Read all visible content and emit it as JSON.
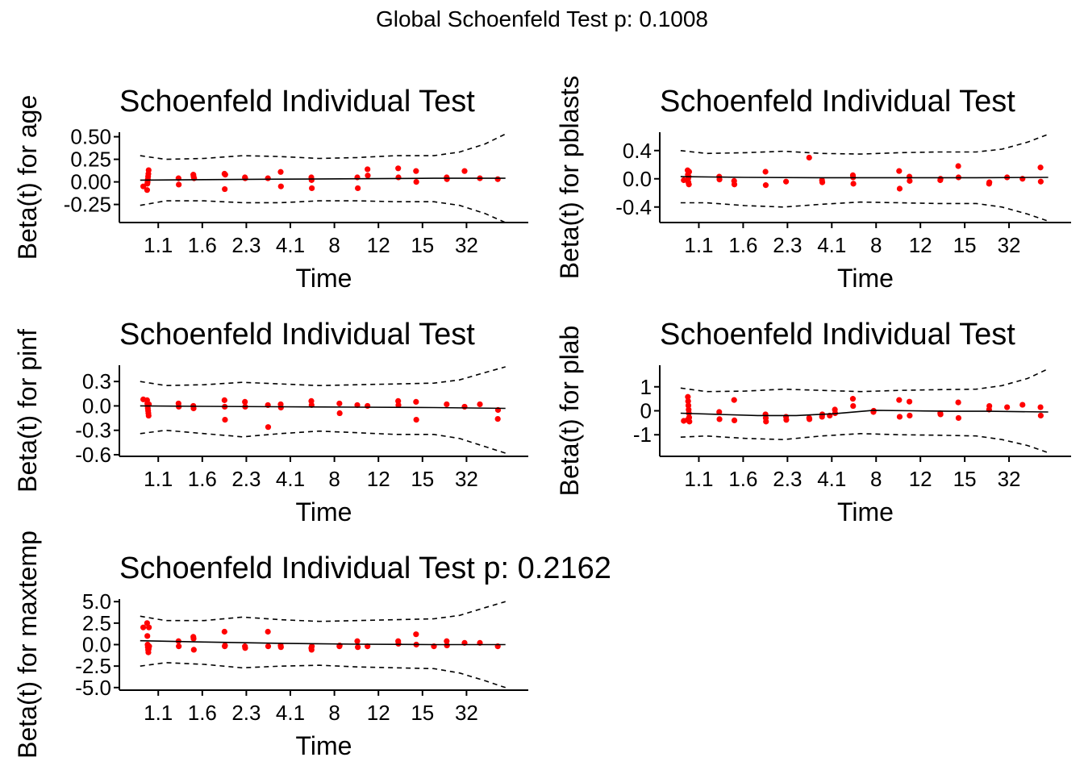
{
  "figure": {
    "title": "Global Schoenfeld Test p: 0.1008",
    "colors": {
      "points": "#ff0000",
      "lines": "#000000",
      "background": "#ffffff"
    }
  },
  "chart_data": [
    {
      "type": "scatter",
      "title": "Schoenfeld Individual Test",
      "xlabel": "Time",
      "ylabel": "Beta(t) for age",
      "x_ticks": [
        "1.1",
        "1.6",
        "2.3",
        "4.1",
        "8",
        "12",
        "15",
        "32"
      ],
      "y_ticks": [
        0.5,
        0.25,
        0.0,
        -0.25
      ],
      "y_tick_labels": [
        "0.50",
        "0.25",
        "0.00",
        "-0.25"
      ],
      "ylim": [
        -0.45,
        0.55
      ],
      "grid": false,
      "series": [
        {
          "kind": "points",
          "x": [
            0.62,
            0.77,
            0.78,
            0.79,
            0.8,
            0.81,
            0.82,
            0.83,
            2.0,
            2.01,
            2.58,
            2.59,
            2.61,
            3.8,
            3.81,
            3.83,
            4.6,
            4.61,
            5.5,
            6.0,
            6.01,
            7.2,
            7.21,
            7.22,
            9.0,
            9.02,
            9.4,
            9.41,
            10.6,
            10.61,
            11.3,
            11.31,
            12.5,
            12.51,
            13.2,
            13.8,
            14.5
          ],
          "y": [
            -0.05,
            -0.09,
            -0.02,
            0.0,
            0.03,
            0.06,
            0.09,
            0.13,
            0.04,
            -0.03,
            0.08,
            0.06,
            0.04,
            0.09,
            -0.08,
            0.08,
            0.05,
            0.04,
            0.04,
            0.11,
            -0.05,
            0.05,
            0.02,
            -0.07,
            0.05,
            -0.07,
            0.14,
            0.07,
            0.15,
            0.05,
            0.12,
            0.0,
            0.05,
            0.03,
            0.12,
            0.04,
            0.03
          ]
        },
        {
          "kind": "fit",
          "x": [
            0.5,
            3.0,
            6.0,
            9.0,
            12.0,
            14.8
          ],
          "y": [
            0.02,
            0.025,
            0.03,
            0.035,
            0.04,
            0.04
          ]
        },
        {
          "kind": "upper_band",
          "x": [
            0.5,
            1.5,
            3.0,
            4.5,
            6.0,
            7.5,
            9.0,
            10.5,
            12.0,
            13.0,
            14.0,
            14.8
          ],
          "y": [
            0.29,
            0.25,
            0.26,
            0.29,
            0.28,
            0.26,
            0.27,
            0.29,
            0.29,
            0.33,
            0.42,
            0.53
          ]
        },
        {
          "kind": "lower_band",
          "x": [
            0.5,
            1.5,
            3.0,
            4.5,
            6.0,
            7.5,
            9.0,
            10.5,
            12.0,
            13.0,
            14.0,
            14.8
          ],
          "y": [
            -0.26,
            -0.21,
            -0.21,
            -0.23,
            -0.23,
            -0.21,
            -0.21,
            -0.22,
            -0.22,
            -0.26,
            -0.35,
            -0.45
          ]
        }
      ]
    },
    {
      "type": "scatter",
      "title": "Schoenfeld Individual Test",
      "xlabel": "Time",
      "ylabel": "Beta(t) for pblasts",
      "x_ticks": [
        "1.1",
        "1.6",
        "2.3",
        "4.1",
        "8",
        "12",
        "15",
        "32"
      ],
      "y_ticks": [
        0.4,
        0.0,
        -0.4
      ],
      "y_tick_labels": [
        "0.4",
        "0.0",
        "-0.4"
      ],
      "ylim": [
        -0.62,
        0.66
      ],
      "grid": false,
      "series": [
        {
          "kind": "points",
          "x": [
            0.62,
            0.77,
            0.78,
            0.79,
            0.8,
            0.81,
            0.82,
            0.83,
            2.0,
            2.01,
            2.58,
            2.59,
            3.8,
            3.81,
            4.6,
            5.5,
            6.0,
            6.01,
            7.2,
            7.21,
            7.22,
            9.0,
            9.02,
            9.4,
            9.41,
            10.6,
            10.61,
            11.3,
            11.31,
            12.5,
            12.51,
            13.2,
            13.8,
            14.5,
            14.51
          ],
          "y": [
            -0.02,
            0.12,
            0.06,
            0.0,
            -0.05,
            0.03,
            -0.08,
            0.1,
            0.03,
            -0.01,
            -0.03,
            -0.08,
            0.1,
            -0.09,
            -0.04,
            0.3,
            -0.02,
            -0.05,
            0.05,
            0.02,
            -0.07,
            0.11,
            -0.14,
            0.03,
            -0.03,
            -0.02,
            0.0,
            0.18,
            0.02,
            -0.07,
            -0.05,
            0.02,
            0.0,
            0.16,
            -0.04
          ]
        },
        {
          "kind": "fit",
          "x": [
            0.5,
            3.0,
            6.0,
            9.0,
            12.0,
            14.8
          ],
          "y": [
            0.03,
            0.02,
            0.015,
            0.015,
            0.015,
            0.02
          ]
        },
        {
          "kind": "upper_band",
          "x": [
            0.5,
            1.5,
            3.0,
            4.5,
            6.0,
            7.5,
            9.0,
            10.5,
            12.0,
            13.0,
            14.0,
            14.8
          ],
          "y": [
            0.4,
            0.36,
            0.37,
            0.39,
            0.36,
            0.35,
            0.37,
            0.38,
            0.38,
            0.42,
            0.52,
            0.63
          ]
        },
        {
          "kind": "lower_band",
          "x": [
            0.5,
            1.5,
            3.0,
            4.5,
            6.0,
            7.5,
            9.0,
            10.5,
            12.0,
            13.0,
            14.0,
            14.8
          ],
          "y": [
            -0.34,
            -0.34,
            -0.38,
            -0.4,
            -0.36,
            -0.33,
            -0.34,
            -0.35,
            -0.35,
            -0.4,
            -0.5,
            -0.6
          ]
        }
      ]
    },
    {
      "type": "scatter",
      "title": "Schoenfeld Individual Test",
      "xlabel": "Time",
      "ylabel": "Beta(t) for pinf",
      "x_ticks": [
        "1.1",
        "1.6",
        "2.3",
        "4.1",
        "8",
        "12",
        "15",
        "32"
      ],
      "y_ticks": [
        0.3,
        0.0,
        -0.3,
        -0.6
      ],
      "y_tick_labels": [
        "0.3",
        "0.0",
        "-0.3",
        "-0.6"
      ],
      "ylim": [
        -0.62,
        0.5
      ],
      "grid": false,
      "series": [
        {
          "kind": "points",
          "x": [
            0.62,
            0.77,
            0.78,
            0.79,
            0.8,
            0.81,
            0.82,
            0.83,
            0.84,
            2.0,
            2.01,
            2.58,
            2.59,
            3.8,
            3.81,
            3.82,
            4.6,
            4.61,
            5.5,
            5.51,
            6.0,
            6.01,
            7.2,
            7.21,
            8.3,
            8.31,
            9.0,
            9.4,
            10.6,
            10.61,
            11.3,
            11.31,
            12.5,
            13.2,
            13.8,
            14.5,
            14.51
          ],
          "y": [
            0.08,
            0.07,
            0.03,
            0.0,
            -0.03,
            -0.06,
            -0.09,
            -0.12,
            0.02,
            0.03,
            -0.01,
            0.0,
            -0.03,
            0.07,
            -0.01,
            -0.17,
            0.05,
            -0.01,
            0.01,
            -0.26,
            0.02,
            -0.02,
            0.06,
            0.01,
            0.03,
            -0.09,
            0.01,
            0.0,
            0.06,
            0.01,
            0.05,
            -0.17,
            0.02,
            -0.01,
            0.02,
            -0.16,
            -0.05
          ]
        },
        {
          "kind": "fit",
          "x": [
            0.5,
            3.0,
            6.0,
            9.0,
            12.0,
            14.8
          ],
          "y": [
            0.0,
            -0.005,
            -0.01,
            -0.015,
            -0.02,
            -0.03
          ]
        },
        {
          "kind": "upper_band",
          "x": [
            0.5,
            1.5,
            3.0,
            4.5,
            6.0,
            7.5,
            9.0,
            10.5,
            12.0,
            13.0,
            14.0,
            14.8
          ],
          "y": [
            0.3,
            0.25,
            0.26,
            0.29,
            0.27,
            0.25,
            0.26,
            0.27,
            0.28,
            0.32,
            0.41,
            0.48
          ]
        },
        {
          "kind": "lower_band",
          "x": [
            0.5,
            1.5,
            3.0,
            4.5,
            6.0,
            7.5,
            9.0,
            10.5,
            12.0,
            13.0,
            14.0,
            14.8
          ],
          "y": [
            -0.34,
            -0.3,
            -0.34,
            -0.38,
            -0.34,
            -0.31,
            -0.33,
            -0.35,
            -0.35,
            -0.4,
            -0.5,
            -0.58
          ]
        }
      ]
    },
    {
      "type": "scatter",
      "title": "Schoenfeld Individual Test",
      "xlabel": "Time",
      "ylabel": "Beta(t) for plab",
      "x_ticks": [
        "1.1",
        "1.6",
        "2.3",
        "4.1",
        "8",
        "12",
        "15",
        "32"
      ],
      "y_ticks": [
        1,
        0,
        -1
      ],
      "y_tick_labels": [
        "1",
        "0",
        "-1"
      ],
      "ylim": [
        -1.9,
        1.9
      ],
      "grid": false,
      "series": [
        {
          "kind": "points",
          "x": [
            0.62,
            0.77,
            0.78,
            0.79,
            0.8,
            0.81,
            0.82,
            0.83,
            0.84,
            2.0,
            2.01,
            2.58,
            2.59,
            3.8,
            3.81,
            3.82,
            4.6,
            4.61,
            5.5,
            5.51,
            6.0,
            6.01,
            6.3,
            6.5,
            6.51,
            7.2,
            7.21,
            8.0,
            8.01,
            9.0,
            9.02,
            9.4,
            9.41,
            10.6,
            10.61,
            11.3,
            11.31,
            12.5,
            12.51,
            13.2,
            13.8,
            14.5,
            14.51
          ],
          "y": [
            -0.42,
            -0.38,
            0.58,
            0.4,
            0.22,
            0.05,
            -0.1,
            -0.28,
            -0.45,
            -0.05,
            -0.35,
            0.45,
            -0.4,
            -0.15,
            -0.3,
            -0.45,
            -0.25,
            -0.38,
            -0.3,
            -0.35,
            -0.25,
            -0.15,
            -0.2,
            0.05,
            -0.1,
            0.5,
            0.2,
            -0.05,
            0.0,
            0.45,
            -0.25,
            0.38,
            -0.2,
            -0.1,
            -0.15,
            0.35,
            -0.3,
            0.05,
            0.2,
            0.15,
            0.25,
            0.15,
            -0.2
          ]
        },
        {
          "kind": "fit",
          "x": [
            0.5,
            2.0,
            3.5,
            5.0,
            6.5,
            8.0,
            9.5,
            11.0,
            12.5,
            14.8
          ],
          "y": [
            -0.1,
            -0.15,
            -0.2,
            -0.2,
            -0.12,
            0.02,
            0.0,
            -0.02,
            -0.02,
            -0.05
          ]
        },
        {
          "kind": "upper_band",
          "x": [
            0.5,
            1.5,
            3.0,
            4.5,
            6.0,
            7.5,
            9.0,
            10.5,
            12.0,
            13.0,
            14.0,
            14.8
          ],
          "y": [
            0.95,
            0.8,
            0.82,
            0.9,
            0.85,
            0.8,
            0.85,
            0.88,
            0.9,
            1.05,
            1.35,
            1.75
          ]
        },
        {
          "kind": "lower_band",
          "x": [
            0.5,
            1.5,
            3.0,
            4.5,
            6.0,
            7.5,
            9.0,
            10.5,
            12.0,
            13.0,
            14.0,
            14.8
          ],
          "y": [
            -1.1,
            -1.05,
            -1.15,
            -1.2,
            -1.05,
            -0.95,
            -1.0,
            -1.02,
            -1.05,
            -1.2,
            -1.45,
            -1.75
          ]
        }
      ]
    },
    {
      "type": "scatter",
      "title": "Schoenfeld Individual Test p: 0.2162",
      "xlabel": "Time",
      "ylabel": "Beta(t) for maxtemp",
      "x_ticks": [
        "1.1",
        "1.6",
        "2.3",
        "4.1",
        "8",
        "12",
        "15",
        "32"
      ],
      "y_ticks": [
        5.0,
        2.5,
        0.0,
        -2.5,
        -5.0
      ],
      "y_tick_labels": [
        "5.0",
        "2.5",
        "0.0",
        "-2.5",
        "-5.0"
      ],
      "ylim": [
        -5.3,
        5.3
      ],
      "grid": false,
      "series": [
        {
          "kind": "points",
          "x": [
            0.62,
            0.77,
            0.78,
            0.79,
            0.8,
            0.81,
            0.82,
            0.83,
            0.84,
            0.85,
            2.0,
            2.01,
            2.58,
            2.59,
            2.6,
            3.8,
            3.81,
            3.82,
            4.6,
            4.61,
            5.5,
            5.51,
            6.0,
            6.01,
            7.2,
            7.21,
            7.22,
            8.3,
            8.31,
            9.0,
            9.02,
            9.4,
            10.6,
            10.61,
            11.3,
            11.31,
            12.0,
            12.5,
            12.51,
            13.2,
            13.8,
            14.5
          ],
          "y": [
            2.0,
            2.5,
            1.0,
            0.0,
            -0.3,
            -0.6,
            -0.9,
            -0.5,
            2.0,
            -0.2,
            0.4,
            -0.2,
            0.9,
            0.7,
            -0.6,
            1.5,
            -0.2,
            -0.1,
            -0.2,
            -0.4,
            1.5,
            -0.2,
            -0.1,
            -0.3,
            -0.4,
            -0.6,
            -0.2,
            -0.2,
            -0.1,
            0.4,
            -0.3,
            -0.2,
            0.4,
            0.1,
            1.2,
            0.0,
            -0.2,
            0.4,
            -0.1,
            0.2,
            0.2,
            -0.2
          ]
        },
        {
          "kind": "fit",
          "x": [
            0.5,
            3.0,
            6.0,
            9.0,
            12.0,
            14.8
          ],
          "y": [
            0.45,
            0.3,
            0.15,
            0.05,
            0.0,
            0.0
          ]
        },
        {
          "kind": "upper_band",
          "x": [
            0.5,
            1.5,
            3.0,
            4.5,
            6.0,
            7.5,
            9.0,
            10.5,
            12.0,
            13.0,
            14.0,
            14.8
          ],
          "y": [
            3.3,
            2.8,
            2.8,
            3.2,
            2.9,
            2.7,
            2.8,
            2.9,
            3.0,
            3.4,
            4.3,
            5.0
          ]
        },
        {
          "kind": "lower_band",
          "x": [
            0.5,
            1.5,
            3.0,
            4.5,
            6.0,
            7.5,
            9.0,
            10.5,
            12.0,
            13.0,
            14.0,
            14.8
          ],
          "y": [
            -2.5,
            -2.1,
            -2.3,
            -2.7,
            -2.5,
            -2.4,
            -2.6,
            -2.7,
            -2.8,
            -3.3,
            -4.2,
            -5.0
          ]
        }
      ]
    }
  ]
}
